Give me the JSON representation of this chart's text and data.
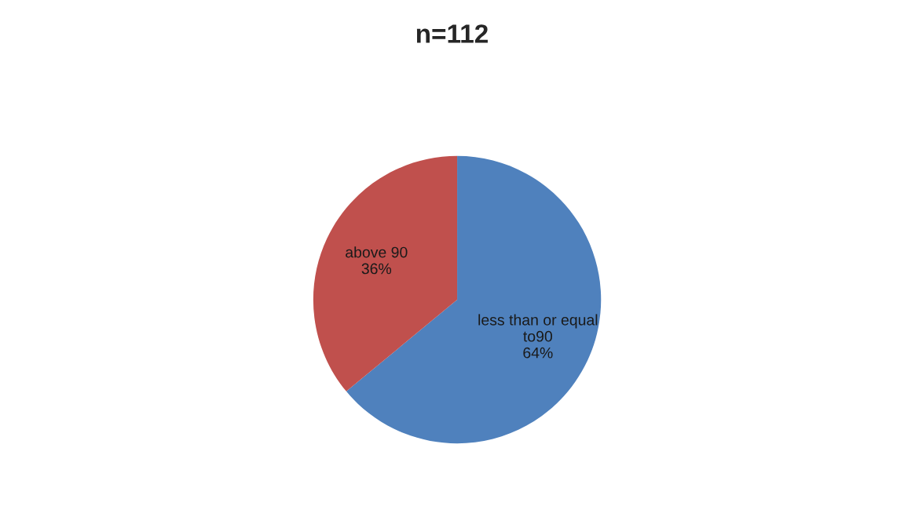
{
  "chart_data": {
    "type": "pie",
    "title": "n=112",
    "categories": [
      "less than or equal to90",
      "above 90"
    ],
    "values": [
      64,
      36
    ],
    "value_labels": [
      "64%",
      "36%"
    ],
    "colors": [
      "#4f81bd",
      "#c0504d"
    ],
    "legend": false
  }
}
